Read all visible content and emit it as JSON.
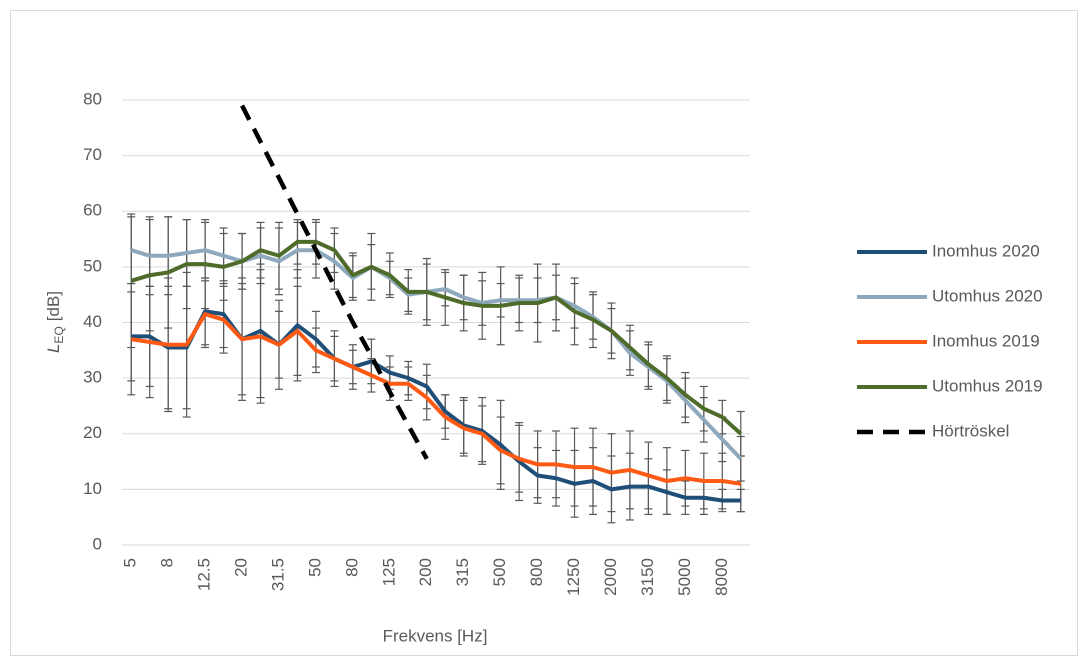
{
  "chart_data": {
    "type": "line",
    "xlabel": "Frekvens [Hz]",
    "ylabel_parts": [
      "L",
      "EQ",
      "[dB]"
    ],
    "categories": [
      "5",
      null,
      "8",
      null,
      "12.5",
      null,
      "20",
      null,
      "31.5",
      null,
      "50",
      null,
      "80",
      null,
      "125",
      null,
      "200",
      null,
      "315",
      null,
      "500",
      null,
      "800",
      null,
      "1250",
      null,
      "2000",
      null,
      "3150",
      null,
      "5000",
      null,
      "8000",
      null
    ],
    "ylim": [
      0,
      80
    ],
    "yticks": [
      0,
      10,
      20,
      30,
      40,
      50,
      60,
      70,
      80
    ],
    "grid": true,
    "legend": "right",
    "series": [
      {
        "name": "Inomhus 2020",
        "color": "#1f4e79",
        "dashed": false,
        "values": [
          37.5,
          37.5,
          35.5,
          35.5,
          42,
          41.5,
          37,
          38.5,
          36,
          39.5,
          37,
          33.5,
          32,
          33,
          31,
          30,
          28.5,
          24,
          21.5,
          20.5,
          18,
          15,
          12.5,
          12,
          11,
          11.5,
          10,
          10.5,
          10.5,
          9.5,
          8.5,
          8.5,
          8,
          8
        ],
        "errors": [
          8,
          9,
          11,
          11,
          6,
          6,
          10,
          12,
          8,
          10,
          5,
          5,
          4,
          4,
          3,
          3,
          4,
          3,
          5,
          6,
          8,
          7,
          5,
          5,
          6,
          6,
          6,
          6,
          5,
          4,
          3,
          3,
          2,
          2
        ]
      },
      {
        "name": "Utomhus 2020",
        "color": "#8ea9bd",
        "dashed": false,
        "values": [
          53,
          52,
          52,
          52.5,
          53,
          52,
          51,
          52,
          51,
          53,
          53,
          51,
          48,
          50,
          48,
          45,
          45.5,
          46,
          44.5,
          43.5,
          44,
          44,
          44,
          44.5,
          43,
          41,
          38.5,
          34.5,
          32,
          29.5,
          26,
          22.5,
          19,
          15.5
        ],
        "errors": [
          6,
          7,
          7,
          6,
          5,
          5,
          5,
          5,
          6,
          5,
          5,
          5,
          4,
          4,
          3,
          3,
          5,
          3,
          4,
          4,
          3,
          4,
          4,
          4,
          4,
          4,
          4,
          4,
          4,
          4,
          4,
          4,
          4,
          4
        ]
      },
      {
        "name": "Inomhus 2019",
        "color": "#ff5a14",
        "dashed": false,
        "values": [
          37,
          36.5,
          36,
          36,
          41.5,
          40.5,
          37,
          37.5,
          36,
          38.5,
          35,
          33.5,
          32,
          30.5,
          29,
          29,
          26.5,
          23,
          21,
          20,
          17,
          15.5,
          14.5,
          14.5,
          14,
          14,
          13,
          13.5,
          12.5,
          11.5,
          12,
          11.5,
          11.5,
          11
        ],
        "errors": [
          10,
          10,
          12,
          13,
          6,
          6,
          11,
          12,
          6,
          8,
          4,
          4,
          3,
          3,
          3,
          3,
          4,
          4,
          5,
          5,
          6,
          6,
          6,
          6,
          7,
          7,
          7,
          7,
          6,
          6,
          5,
          5,
          5,
          5
        ]
      },
      {
        "name": "Utomhus 2019",
        "color": "#4e6b2a",
        "dashed": false,
        "values": [
          47.5,
          48.5,
          49,
          50.5,
          50.5,
          50,
          51,
          53,
          52,
          54.5,
          54.5,
          53,
          48.5,
          50,
          48.5,
          45.5,
          45.5,
          44.5,
          43.5,
          43,
          43,
          43.5,
          43.5,
          44.5,
          42,
          40.5,
          38.5,
          35.5,
          32.5,
          30,
          27,
          24.5,
          23,
          20
        ],
        "errors": [
          12,
          10,
          10,
          8,
          8,
          6,
          5,
          5,
          6,
          4,
          4,
          4,
          4,
          6,
          4,
          4,
          6,
          5,
          5,
          6,
          7,
          5,
          7,
          6,
          6,
          5,
          5,
          4,
          4,
          4,
          4,
          4,
          3,
          4
        ]
      },
      {
        "name": "Hörtröskel",
        "color": "#000000",
        "dashed": true,
        "values": [
          null,
          null,
          null,
          null,
          null,
          null,
          79,
          72.5,
          66,
          59.5,
          53,
          46.5,
          40,
          34,
          27.5,
          21.5,
          15.5,
          null,
          null,
          null,
          null,
          null,
          null,
          null,
          null,
          null,
          null,
          null,
          null,
          null,
          null,
          null,
          null,
          null
        ]
      }
    ]
  }
}
